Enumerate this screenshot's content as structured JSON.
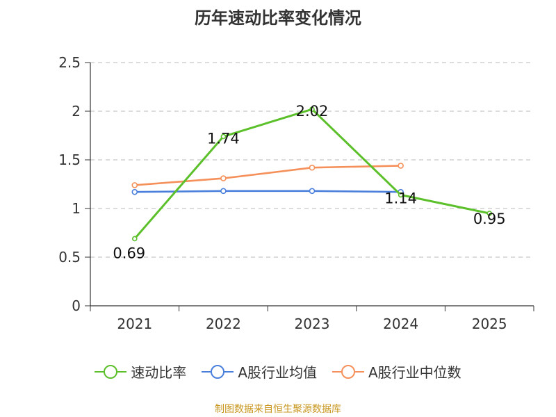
{
  "chart_data": {
    "type": "line",
    "title": "历年速动比率变化情况",
    "categories": [
      "2021",
      "2022",
      "2023",
      "2024",
      "2025"
    ],
    "ylim": [
      0,
      2.5
    ],
    "yticks": [
      "0",
      "0.5",
      "1",
      "1.5",
      "2",
      "2.5"
    ],
    "ytick_values": [
      0,
      0.5,
      1,
      1.5,
      2,
      2.5
    ],
    "grid": true,
    "legend_position": "bottom",
    "series": [
      {
        "name": "速动比率",
        "color": "#5cc02b",
        "values": [
          0.69,
          1.74,
          2.02,
          1.14,
          0.95
        ],
        "labels": [
          "0.69",
          "1.74",
          "2.02",
          "1.14",
          "0.95"
        ]
      },
      {
        "name": "A股行业均值",
        "color": "#4a7fdc",
        "values": [
          1.17,
          1.18,
          1.18,
          1.17,
          null
        ]
      },
      {
        "name": "A股行业中位数",
        "color": "#f5905a",
        "values": [
          1.24,
          1.31,
          1.42,
          1.44,
          null
        ]
      }
    ]
  },
  "source": {
    "text": "制图数据来自恒生聚源数据库",
    "color": "#c8961e"
  }
}
